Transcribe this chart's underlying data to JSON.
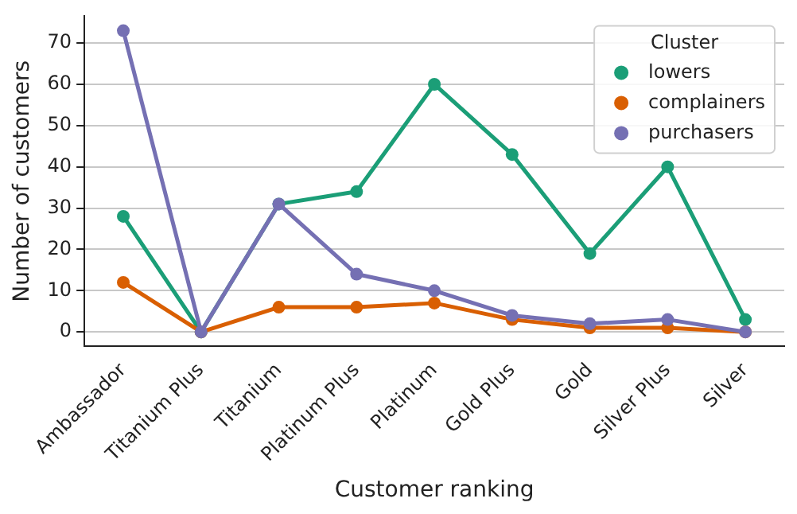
{
  "chart_data": {
    "type": "line",
    "xlabel": "Customer ranking",
    "ylabel": "Number of customers",
    "legend_title": "Cluster",
    "categories": [
      "Ambassador",
      "Titanium Plus",
      "Titanium",
      "Platinum Plus",
      "Platinum",
      "Gold Plus",
      "Gold",
      "Silver Plus",
      "Silver"
    ],
    "series": [
      {
        "name": "lowers",
        "color": "#1b9e77",
        "values": [
          28,
          0,
          31,
          34,
          60,
          43,
          19,
          40,
          3
        ]
      },
      {
        "name": "complainers",
        "color": "#d95f02",
        "values": [
          12,
          0,
          6,
          6,
          7,
          3,
          1,
          1,
          0
        ]
      },
      {
        "name": "purchasers",
        "color": "#7570b3",
        "values": [
          73,
          0,
          31,
          14,
          10,
          4,
          2,
          3,
          0
        ]
      }
    ],
    "ylim": [
      -3.5,
      76.5
    ],
    "yticks": [
      0,
      10,
      20,
      30,
      40,
      50,
      60,
      70
    ],
    "grid": "y",
    "legend": "top right",
    "marker": "circle",
    "line_style": "solid"
  }
}
